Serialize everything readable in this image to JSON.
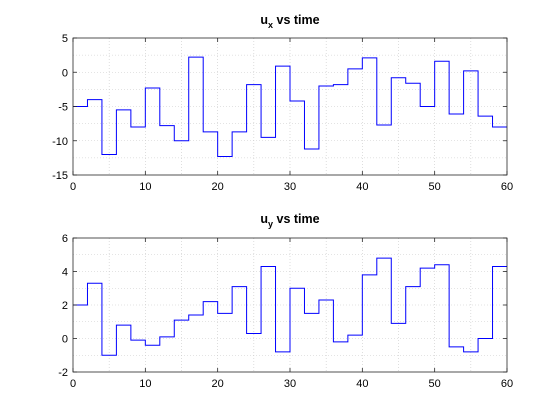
{
  "chart_data": [
    {
      "type": "line",
      "step": true,
      "title_main": "u",
      "title_sub": "x",
      "title_rest": " vs time",
      "xlabel": "",
      "ylabel": "",
      "xlim": [
        0,
        60
      ],
      "ylim": [
        -15,
        5
      ],
      "xticks": [
        0,
        10,
        20,
        30,
        40,
        50,
        60
      ],
      "yticks": [
        -15,
        -10,
        -5,
        0,
        5
      ],
      "grid": "dotted",
      "line_color": "#0000ff",
      "x": [
        0,
        2,
        4,
        6,
        8,
        10,
        12,
        14,
        16,
        18,
        20,
        22,
        24,
        26,
        28,
        30,
        32,
        34,
        36,
        38,
        40,
        42,
        44,
        46,
        48,
        50,
        52,
        54,
        56,
        58
      ],
      "values": [
        -5,
        -4,
        -12,
        -5.5,
        -8,
        -2.3,
        -7.8,
        -10,
        2.2,
        -8.7,
        -12.3,
        -8.7,
        -1.8,
        -9.5,
        0.9,
        -4.2,
        -11.2,
        -2,
        -1.8,
        0.5,
        2.1,
        -7.7,
        -0.8,
        -1.6,
        -5,
        1.6,
        -6.1,
        0.2,
        -6.4,
        -8
      ]
    },
    {
      "type": "line",
      "step": true,
      "title_main": "u",
      "title_sub": "y",
      "title_rest": " vs time",
      "xlabel": "",
      "ylabel": "",
      "xlim": [
        0,
        60
      ],
      "ylim": [
        -2,
        6
      ],
      "xticks": [
        0,
        10,
        20,
        30,
        40,
        50,
        60
      ],
      "yticks": [
        -2,
        0,
        2,
        4,
        6
      ],
      "grid": "dotted",
      "line_color": "#0000ff",
      "x": [
        0,
        2,
        4,
        6,
        8,
        10,
        12,
        14,
        16,
        18,
        20,
        22,
        24,
        26,
        28,
        30,
        32,
        34,
        36,
        38,
        40,
        42,
        44,
        46,
        48,
        50,
        52,
        54,
        56,
        58
      ],
      "values": [
        2,
        3.3,
        -1,
        0.8,
        -0.1,
        -0.4,
        0.1,
        1.1,
        1.4,
        2.2,
        1.5,
        3.1,
        0.3,
        4.3,
        -0.8,
        3,
        1.5,
        2.3,
        -0.2,
        0.2,
        3.8,
        4.8,
        0.9,
        3.1,
        4.2,
        4.4,
        -0.5,
        -0.8,
        0,
        4.3
      ]
    }
  ]
}
